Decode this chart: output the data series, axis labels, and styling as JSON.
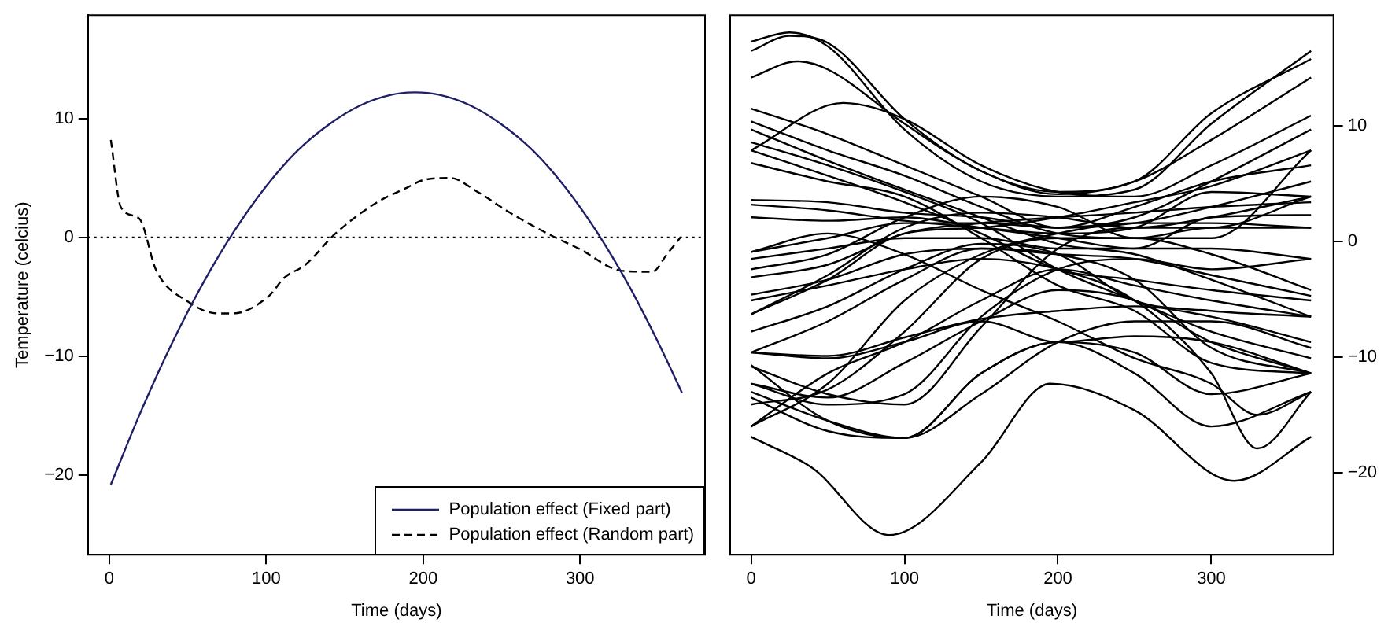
{
  "chart_data": [
    {
      "type": "line",
      "xlabel": "Time (days)",
      "ylabel": "Temperature (celcius)",
      "xlim": [
        -13.6,
        379.6
      ],
      "xticks": [
        0,
        100,
        200,
        300
      ],
      "ylim": [
        -26.7,
        18.7
      ],
      "yticks": [
        -20,
        -10,
        0,
        10
      ],
      "grid": false,
      "marker": "none",
      "legend": "bottom right",
      "ref_lines": [
        {
          "axis": "y",
          "value": 0,
          "line_style": "dotted",
          "color": "#000000"
        }
      ],
      "series": [
        {
          "name": "Population effect (Fixed part)",
          "color": "#1f1f66",
          "line_style": "solid",
          "x": [
            1,
            20,
            40,
            60,
            80,
            100,
            120,
            140,
            160,
            180,
            195,
            210,
            230,
            250,
            270,
            290,
            310,
            330,
            350,
            365
          ],
          "values": [
            -20.8,
            -14.7,
            -8.9,
            -3.8,
            0.6,
            4.3,
            7.3,
            9.5,
            11.1,
            12.0,
            12.2,
            12.0,
            11.1,
            9.5,
            7.3,
            4.3,
            0.6,
            -3.8,
            -8.9,
            -13.1
          ]
        },
        {
          "name": "Population effect (Random part)",
          "color": "#000000",
          "line_style": "dashed",
          "x": [
            1,
            7.5,
            19,
            30,
            50,
            69,
            79,
            102,
            111.5,
            125,
            144,
            170,
            190,
            199.5,
            217,
            235,
            255,
            281,
            300,
            326,
            346,
            355.5,
            364
          ],
          "values": [
            8.2,
            2.5,
            1.6,
            -2.8,
            -5.4,
            -6.4,
            -6.4,
            -4.9,
            -3.4,
            -2.3,
            0.3,
            2.9,
            4.2,
            4.8,
            5.0,
            3.8,
            2.1,
            0.2,
            -1.0,
            -2.8,
            -2.9,
            -1.4,
            0
          ]
        }
      ]
    },
    {
      "type": "line",
      "xlabel": "Time (days)",
      "xlim": [
        -13.6,
        379.6
      ],
      "xticks": [
        0,
        100,
        200,
        300
      ],
      "y2lim": [
        -27.1,
        19.6
      ],
      "y2ticks": [
        -20,
        -10,
        0,
        10
      ],
      "grid": false,
      "marker": "none",
      "line_style": "solid",
      "series": [
        {
          "color": "#000000",
          "axis": "y2",
          "x": [
            0,
            25,
            50,
            100,
            150,
            200,
            250,
            300,
            365
          ],
          "values": [
            17.3,
            18.1,
            16.9,
            9.7,
            5.2,
            3.9,
            4.5,
            10.2,
            16.5
          ]
        },
        {
          "color": "#000000",
          "axis": "y2",
          "x": [
            0,
            25,
            50,
            100,
            150,
            200,
            250,
            300,
            365
          ],
          "values": [
            16.5,
            17.8,
            17.2,
            10.6,
            6.1,
            4.3,
            5.2,
            11.1,
            15.8
          ]
        },
        {
          "color": "#000000",
          "axis": "y2",
          "x": [
            0,
            30,
            50,
            100,
            150,
            200,
            250,
            300,
            365
          ],
          "values": [
            14.2,
            15.6,
            14.9,
            10.2,
            6.1,
            4.1,
            5.2,
            8.8,
            14.2
          ]
        },
        {
          "color": "#000000",
          "axis": "y2",
          "x": [
            0,
            60,
            100,
            150,
            200,
            250,
            300,
            365
          ],
          "values": [
            7.9,
            12.0,
            10.6,
            6.6,
            4.3,
            3.9,
            6.6,
            10.9
          ]
        },
        {
          "color": "#000000",
          "axis": "y2",
          "x": [
            0,
            50,
            100,
            150,
            200,
            250,
            300,
            365
          ],
          "values": [
            11.5,
            9.3,
            6.6,
            3.9,
            1.2,
            2.1,
            5.2,
            9.7
          ]
        },
        {
          "color": "#000000",
          "axis": "y2",
          "x": [
            0,
            50,
            100,
            150,
            200,
            250,
            300,
            365
          ],
          "values": [
            10.4,
            7.9,
            5.7,
            3.0,
            0.7,
            0.3,
            0.3,
            7.9
          ]
        },
        {
          "color": "#000000",
          "axis": "y2",
          "x": [
            0,
            50,
            100,
            150,
            200,
            250,
            300,
            365
          ],
          "values": [
            9.7,
            7.0,
            4.5,
            2.1,
            -0.2,
            -1.1,
            -3.3,
            -6.5
          ]
        },
        {
          "color": "#000000",
          "axis": "y2",
          "x": [
            0,
            50,
            100,
            150,
            200,
            250,
            300,
            365
          ],
          "values": [
            8.6,
            6.6,
            4.3,
            1.6,
            -2.4,
            -5.1,
            -7.8,
            -10.1
          ]
        },
        {
          "color": "#000000",
          "axis": "y2",
          "x": [
            0,
            50,
            100,
            150,
            200,
            250,
            300,
            365
          ],
          "values": [
            7.9,
            5.7,
            3.4,
            0.7,
            -2.4,
            -3.3,
            -4.2,
            -5.1
          ]
        },
        {
          "color": "#000000",
          "axis": "y2",
          "x": [
            0,
            50,
            100,
            150,
            200,
            250,
            300,
            365
          ],
          "values": [
            6.8,
            5.2,
            3.9,
            0.3,
            -3.8,
            -6.0,
            -10.5,
            -11.4
          ]
        },
        {
          "color": "#000000",
          "axis": "y2",
          "x": [
            0,
            50,
            100,
            150,
            200,
            250,
            300,
            365
          ],
          "values": [
            3.6,
            3.4,
            2.5,
            2.1,
            1.2,
            3.0,
            5.2,
            6.6
          ]
        },
        {
          "color": "#000000",
          "axis": "y2",
          "x": [
            0,
            50,
            100,
            150,
            200,
            250,
            300,
            365
          ],
          "values": [
            3.2,
            2.7,
            1.8,
            1.2,
            0.7,
            1.2,
            4.3,
            3.9
          ]
        },
        {
          "color": "#000000",
          "axis": "y2",
          "x": [
            0,
            50,
            100,
            150,
            200,
            250,
            300,
            365
          ],
          "values": [
            2.1,
            1.8,
            2.1,
            1.2,
            0.3,
            -0.6,
            2.1,
            2.3
          ]
        },
        {
          "color": "#000000",
          "axis": "y2",
          "x": [
            0,
            50,
            100,
            150,
            200,
            250,
            300,
            365
          ],
          "values": [
            -0.9,
            0.3,
            1.6,
            1.6,
            1.2,
            1.6,
            3.0,
            5.2
          ]
        },
        {
          "color": "#000000",
          "axis": "y2",
          "x": [
            0,
            50,
            100,
            150,
            200,
            250,
            300,
            365
          ],
          "values": [
            -1.5,
            -0.6,
            0.3,
            0.3,
            -0.6,
            -0.6,
            -0.6,
            -1.5
          ]
        },
        {
          "color": "#000000",
          "axis": "y2",
          "x": [
            0,
            50,
            100,
            150,
            200,
            250,
            300,
            365
          ],
          "values": [
            -2.4,
            -1.1,
            2.1,
            3.9,
            3.0,
            0.3,
            1.2,
            1.2
          ]
        },
        {
          "color": "#000000",
          "axis": "y2",
          "x": [
            0,
            50,
            100,
            150,
            200,
            250,
            300,
            365
          ],
          "values": [
            -3.1,
            -2.0,
            0.7,
            1.6,
            2.1,
            2.5,
            3.0,
            3.4
          ]
        },
        {
          "color": "#000000",
          "axis": "y2",
          "x": [
            0,
            50,
            100,
            150,
            200,
            250,
            300,
            365
          ],
          "values": [
            -4.6,
            -3.3,
            -1.1,
            -0.6,
            -1.1,
            -1.5,
            -2.9,
            -4.7
          ]
        },
        {
          "color": "#000000",
          "axis": "y2",
          "x": [
            0,
            50,
            100,
            150,
            200,
            250,
            300,
            365
          ],
          "values": [
            -6.3,
            -2.9,
            1.2,
            2.5,
            2.1,
            1.2,
            2.1,
            3.9
          ]
        },
        {
          "color": "#000000",
          "axis": "y2",
          "x": [
            0,
            50,
            100,
            150,
            200,
            250,
            300,
            365
          ],
          "values": [
            -6.3,
            -3.3,
            0.7,
            1.2,
            2.1,
            3.4,
            4.8,
            7.9
          ]
        },
        {
          "color": "#000000",
          "axis": "y2",
          "x": [
            0,
            50,
            100,
            150,
            200,
            250,
            300,
            365
          ],
          "values": [
            -7.8,
            -5.6,
            -2.4,
            -0.2,
            -1.1,
            -5.1,
            -6.0,
            -6.5
          ]
        },
        {
          "color": "#000000",
          "axis": "y2",
          "x": [
            0,
            50,
            100,
            150,
            200,
            250,
            300,
            365
          ],
          "values": [
            -9.6,
            -9.9,
            -8.3,
            -6.7,
            -6.0,
            -5.6,
            -6.5,
            -8.7
          ]
        },
        {
          "color": "#000000",
          "axis": "y2",
          "x": [
            0,
            50,
            100,
            150,
            200,
            250,
            300,
            365
          ],
          "values": [
            -10.8,
            -13.2,
            -14.1,
            -7.4,
            -0.6,
            1.2,
            1.2,
            3.9
          ]
        },
        {
          "color": "#000000",
          "axis": "y2",
          "x": [
            0,
            50,
            100,
            150,
            200,
            250,
            300,
            365
          ],
          "values": [
            -12.3,
            -14.1,
            -13.2,
            -6.5,
            -2.4,
            -1.5,
            -2.4,
            -1.5
          ]
        },
        {
          "color": "#000000",
          "axis": "y2",
          "x": [
            0,
            50,
            100,
            150,
            200,
            250,
            300,
            365
          ],
          "values": [
            -12.3,
            -13.5,
            -10.5,
            -6.9,
            -4.2,
            -5.1,
            -8.7,
            -11.4
          ]
        },
        {
          "color": "#000000",
          "axis": "y2",
          "x": [
            0,
            50,
            100,
            150,
            200,
            250,
            300,
            365
          ],
          "values": [
            -13.0,
            -15.5,
            -17.0,
            -11.4,
            -8.7,
            -9.6,
            -13.2,
            -11.4
          ]
        },
        {
          "color": "#000000",
          "axis": "y2",
          "x": [
            0,
            50,
            100,
            150,
            200,
            250,
            300,
            365
          ],
          "values": [
            -13.5,
            -16.4,
            -17.0,
            -13.2,
            -8.7,
            -6.9,
            -6.9,
            -9.2
          ]
        },
        {
          "color": "#000000",
          "axis": "y2",
          "x": [
            0,
            50,
            100,
            150,
            200,
            250,
            300,
            365
          ],
          "values": [
            -16.0,
            -12.3,
            -5.1,
            -1.1,
            0.7,
            1.6,
            1.6,
            1.2
          ]
        },
        {
          "color": "#000000",
          "axis": "y2",
          "x": [
            0,
            50,
            100,
            150,
            200,
            250,
            300,
            365
          ],
          "values": [
            -10.7,
            -15.5,
            -17.0,
            -11.4,
            -8.7,
            -11.4,
            -16.0,
            -13.0
          ]
        },
        {
          "color": "#000000",
          "axis": "y2",
          "x": [
            0,
            50,
            100,
            150,
            200,
            250,
            300,
            365
          ],
          "values": [
            -16.0,
            -11.4,
            -8.7,
            -5.1,
            -2.4,
            -3.8,
            -5.1,
            -6.5
          ]
        },
        {
          "color": "#000000",
          "axis": "y2",
          "x": [
            0,
            50,
            100,
            150,
            200,
            250,
            300,
            365
          ],
          "values": [
            -9.6,
            -6.9,
            -3.3,
            -0.6,
            -1.1,
            -3.3,
            -9.2,
            -11.4
          ]
        },
        {
          "color": "#000000",
          "axis": "y2",
          "x": [
            0,
            50,
            100,
            150,
            200,
            250,
            300,
            365
          ],
          "values": [
            -14.1,
            -12.8,
            -7.8,
            -1.5,
            0.3,
            0.3,
            -1.1,
            -4.2
          ]
        },
        {
          "color": "#000000",
          "axis": "y2",
          "x": [
            0,
            50,
            100,
            150,
            200,
            250,
            300,
            365
          ],
          "values": [
            -9.6,
            -10.1,
            -8.7,
            -6.9,
            -8.7,
            -8.2,
            -8.7,
            -11.4
          ]
        },
        {
          "color": "#000000",
          "axis": "y2",
          "x": [
            0,
            40,
            90,
            150,
            195,
            250,
            315,
            365
          ],
          "values": [
            -16.9,
            -19.6,
            -25.4,
            -19.1,
            -12.3,
            -14.6,
            -20.7,
            -16.9
          ]
        },
        {
          "color": "#000000",
          "axis": "y2",
          "x": [
            0,
            50,
            100,
            150,
            200,
            250,
            300,
            330,
            365
          ],
          "values": [
            -5.1,
            -3.8,
            -2.4,
            -1.5,
            -2.4,
            -5.1,
            -11.4,
            -17.9,
            -13.0
          ]
        },
        {
          "color": "#000000",
          "axis": "y2",
          "x": [
            0,
            50,
            100,
            150,
            200,
            250,
            300,
            330,
            365
          ],
          "values": [
            -0.9,
            0.7,
            -1.1,
            -4.2,
            -6.9,
            -10.1,
            -12.3,
            -15.0,
            -13.0
          ]
        }
      ]
    }
  ]
}
